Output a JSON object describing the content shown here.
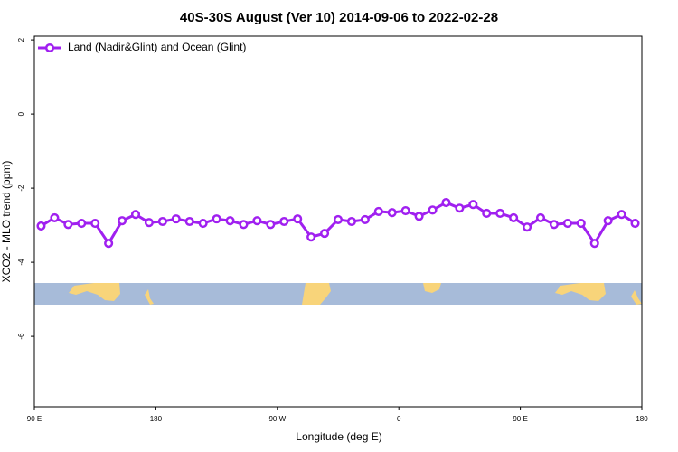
{
  "chart_data": {
    "type": "line",
    "title": "40S-30S August (Ver 10)   2014-09-06 to 2022-02-28",
    "x_label": "Longitude (deg E)",
    "y_label": "XCO2 - MLO trend (ppm)",
    "x": [
      95,
      105,
      115,
      125,
      135,
      145,
      155,
      165,
      175,
      185,
      195,
      205,
      215,
      225,
      235,
      245,
      255,
      265,
      275,
      285,
      295,
      305,
      315,
      325,
      335,
      345,
      355,
      365,
      375,
      385,
      395,
      405,
      415,
      425,
      435,
      445,
      455,
      465,
      475,
      485,
      495,
      505,
      515,
      525,
      535
    ],
    "series": [
      {
        "name": "Land (Nadir&Glint) and Ocean (Glint)",
        "color": "#a020f0",
        "values": [
          -3.02,
          -2.8,
          -2.98,
          -2.95,
          -2.95,
          -3.49,
          -2.88,
          -2.71,
          -2.93,
          -2.9,
          -2.83,
          -2.9,
          -2.95,
          -2.83,
          -2.88,
          -2.98,
          -2.88,
          -2.98,
          -2.9,
          -2.83,
          -3.32,
          -3.22,
          -2.85,
          -2.9,
          -2.85,
          -2.63,
          -2.66,
          -2.61,
          -2.76,
          -2.59,
          -2.39,
          -2.54,
          -2.44,
          -2.68,
          -2.68,
          -2.8,
          -3.05,
          -2.8,
          -2.98,
          -2.95,
          -2.95,
          -3.49,
          -2.88,
          -2.71,
          -2.95
        ]
      }
    ],
    "xlim": [
      90,
      540
    ],
    "xticks": [
      {
        "value": 90,
        "label": "90 E"
      },
      180,
      {
        "value": 270,
        "label": "90 W"
      },
      {
        "value": 360,
        "label": "0"
      },
      {
        "value": 450,
        "label": "90 E"
      },
      {
        "value": 540,
        "label": "180"
      }
    ],
    "ylim": [
      -7.9,
      2.1
    ],
    "yticks": [
      2,
      0,
      -2,
      -4,
      -6
    ],
    "legend": "top-left"
  }
}
